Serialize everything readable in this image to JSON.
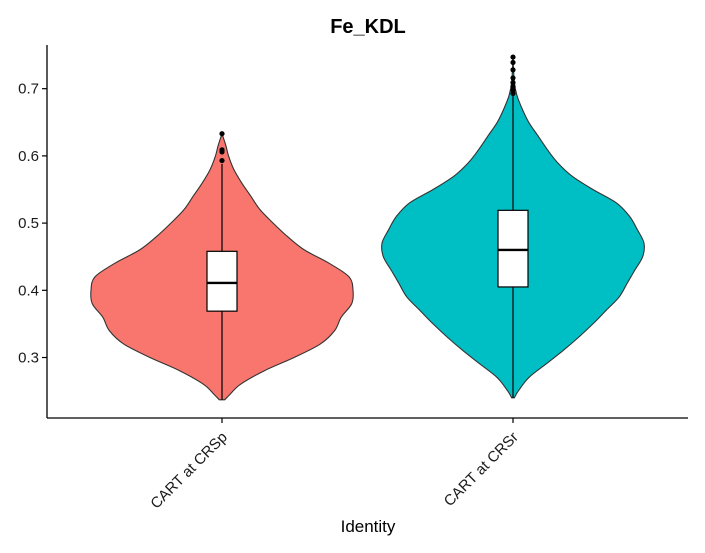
{
  "chart_data": {
    "type": "violin",
    "title": "Fe_KDL",
    "xlabel": "Identity",
    "ylabel": "",
    "ylim": [
      0.21,
      0.765
    ],
    "yticks": [
      0.3,
      0.4,
      0.5,
      0.6,
      0.7
    ],
    "grid": false,
    "legend": "none",
    "categories": [
      "CART at CRSp",
      "CART at CRSr"
    ],
    "colors": [
      "#F8766D",
      "#00BFC4"
    ],
    "violins": [
      {
        "name": "CART at CRSp",
        "min": 0.237,
        "max": 0.633,
        "box": {
          "q1": 0.369,
          "median": 0.411,
          "q3": 0.458
        },
        "whisker_low": 0.237,
        "whisker_high": 0.588,
        "outliers": [
          0.593,
          0.606,
          0.609,
          0.633
        ],
        "density": [
          [
            0.237,
            0.02
          ],
          [
            0.245,
            0.06
          ],
          [
            0.26,
            0.14
          ],
          [
            0.28,
            0.32
          ],
          [
            0.3,
            0.55
          ],
          [
            0.32,
            0.75
          ],
          [
            0.34,
            0.86
          ],
          [
            0.36,
            0.91
          ],
          [
            0.38,
            0.99
          ],
          [
            0.4,
            1.0
          ],
          [
            0.42,
            0.97
          ],
          [
            0.44,
            0.82
          ],
          [
            0.46,
            0.63
          ],
          [
            0.48,
            0.5
          ],
          [
            0.5,
            0.39
          ],
          [
            0.52,
            0.29
          ],
          [
            0.54,
            0.22
          ],
          [
            0.56,
            0.15
          ],
          [
            0.58,
            0.09
          ],
          [
            0.6,
            0.05
          ],
          [
            0.615,
            0.03
          ],
          [
            0.633,
            0.0
          ]
        ]
      },
      {
        "name": "CART at CRSr",
        "min": 0.24,
        "max": 0.747,
        "box": {
          "q1": 0.405,
          "median": 0.46,
          "q3": 0.519
        },
        "whisker_low": 0.24,
        "whisker_high": 0.69,
        "outliers": [
          0.693,
          0.698,
          0.703,
          0.709,
          0.716,
          0.728,
          0.739,
          0.747
        ],
        "density": [
          [
            0.24,
            0.01
          ],
          [
            0.25,
            0.04
          ],
          [
            0.27,
            0.12
          ],
          [
            0.29,
            0.25
          ],
          [
            0.31,
            0.38
          ],
          [
            0.33,
            0.5
          ],
          [
            0.35,
            0.61
          ],
          [
            0.37,
            0.71
          ],
          [
            0.39,
            0.81
          ],
          [
            0.41,
            0.87
          ],
          [
            0.43,
            0.93
          ],
          [
            0.45,
            0.99
          ],
          [
            0.47,
            1.0
          ],
          [
            0.49,
            0.95
          ],
          [
            0.51,
            0.89
          ],
          [
            0.53,
            0.79
          ],
          [
            0.55,
            0.61
          ],
          [
            0.57,
            0.45
          ],
          [
            0.59,
            0.34
          ],
          [
            0.61,
            0.26
          ],
          [
            0.63,
            0.19
          ],
          [
            0.65,
            0.12
          ],
          [
            0.67,
            0.07
          ],
          [
            0.69,
            0.03
          ],
          [
            0.71,
            0.01
          ],
          [
            0.747,
            0.0
          ]
        ]
      }
    ]
  }
}
